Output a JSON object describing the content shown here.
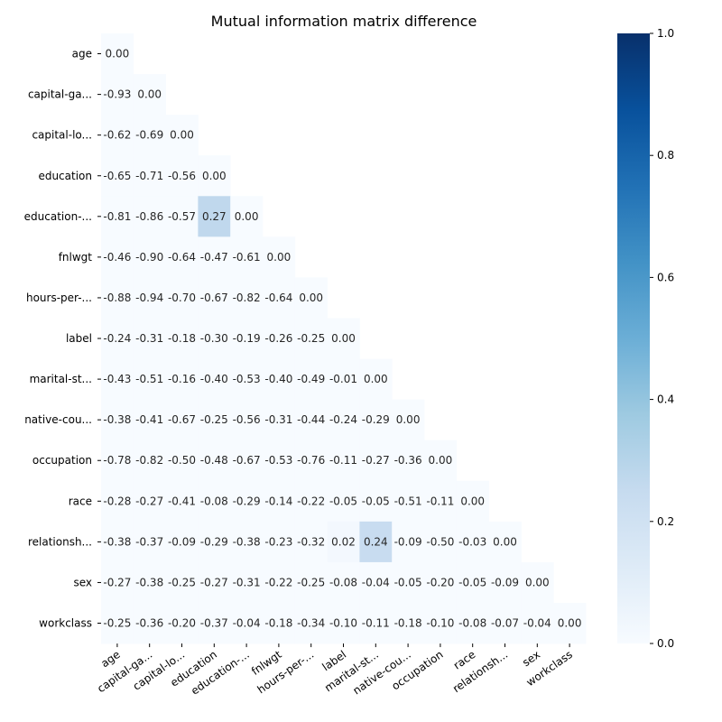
{
  "chart_data": {
    "type": "heatmap",
    "title": "Mutual information matrix difference",
    "xlabel": "",
    "ylabel": "",
    "colormap": "Blues",
    "mask": "upper-triangle",
    "x_tick_labels": [
      "age",
      "capital-ga...",
      "capital-lo...",
      "education",
      "education-...",
      "fnlwgt",
      "hours-per-...",
      "label",
      "marital-st...",
      "native-cou...",
      "occupation",
      "race",
      "relationsh...",
      "sex",
      "workclass"
    ],
    "y_tick_labels": [
      "age",
      "capital-ga...",
      "capital-lo...",
      "education",
      "education-...",
      "fnlwgt",
      "hours-per-...",
      "label",
      "marital-st...",
      "native-cou...",
      "occupation",
      "race",
      "relationsh...",
      "sex",
      "workclass"
    ],
    "values": [
      [
        0.0
      ],
      [
        -0.93,
        0.0
      ],
      [
        -0.62,
        -0.69,
        0.0
      ],
      [
        -0.65,
        -0.71,
        -0.56,
        0.0
      ],
      [
        -0.81,
        -0.86,
        -0.57,
        0.27,
        0.0
      ],
      [
        -0.46,
        -0.9,
        -0.64,
        -0.47,
        -0.61,
        0.0
      ],
      [
        -0.88,
        -0.94,
        -0.7,
        -0.67,
        -0.82,
        -0.64,
        0.0
      ],
      [
        -0.24,
        -0.31,
        -0.18,
        -0.3,
        -0.19,
        -0.26,
        -0.25,
        0.0
      ],
      [
        -0.43,
        -0.51,
        -0.16,
        -0.4,
        -0.53,
        -0.4,
        -0.49,
        -0.01,
        0.0
      ],
      [
        -0.38,
        -0.41,
        -0.67,
        -0.25,
        -0.56,
        -0.31,
        -0.44,
        -0.24,
        -0.29,
        0.0
      ],
      [
        -0.78,
        -0.82,
        -0.5,
        -0.48,
        -0.67,
        -0.53,
        -0.76,
        -0.11,
        -0.27,
        -0.36,
        0.0
      ],
      [
        -0.28,
        -0.27,
        -0.41,
        -0.08,
        -0.29,
        -0.14,
        -0.22,
        -0.05,
        -0.05,
        -0.51,
        -0.11,
        0.0
      ],
      [
        -0.38,
        -0.37,
        -0.09,
        -0.29,
        -0.38,
        -0.23,
        -0.32,
        0.02,
        0.24,
        -0.09,
        -0.5,
        -0.03,
        0.0
      ],
      [
        -0.27,
        -0.38,
        -0.25,
        -0.27,
        -0.31,
        -0.22,
        -0.25,
        -0.08,
        -0.04,
        -0.05,
        -0.2,
        -0.05,
        -0.09,
        0.0
      ],
      [
        -0.25,
        -0.36,
        -0.2,
        -0.37,
        -0.04,
        -0.18,
        -0.34,
        -0.1,
        -0.11,
        -0.18,
        -0.1,
        -0.08,
        -0.07,
        -0.04,
        0.0
      ]
    ],
    "colorbar": {
      "range": [
        0,
        1
      ],
      "ticks": [
        "0.0",
        "0.2",
        "0.4",
        "0.6",
        "0.8",
        "1.0"
      ]
    },
    "grid": false
  }
}
